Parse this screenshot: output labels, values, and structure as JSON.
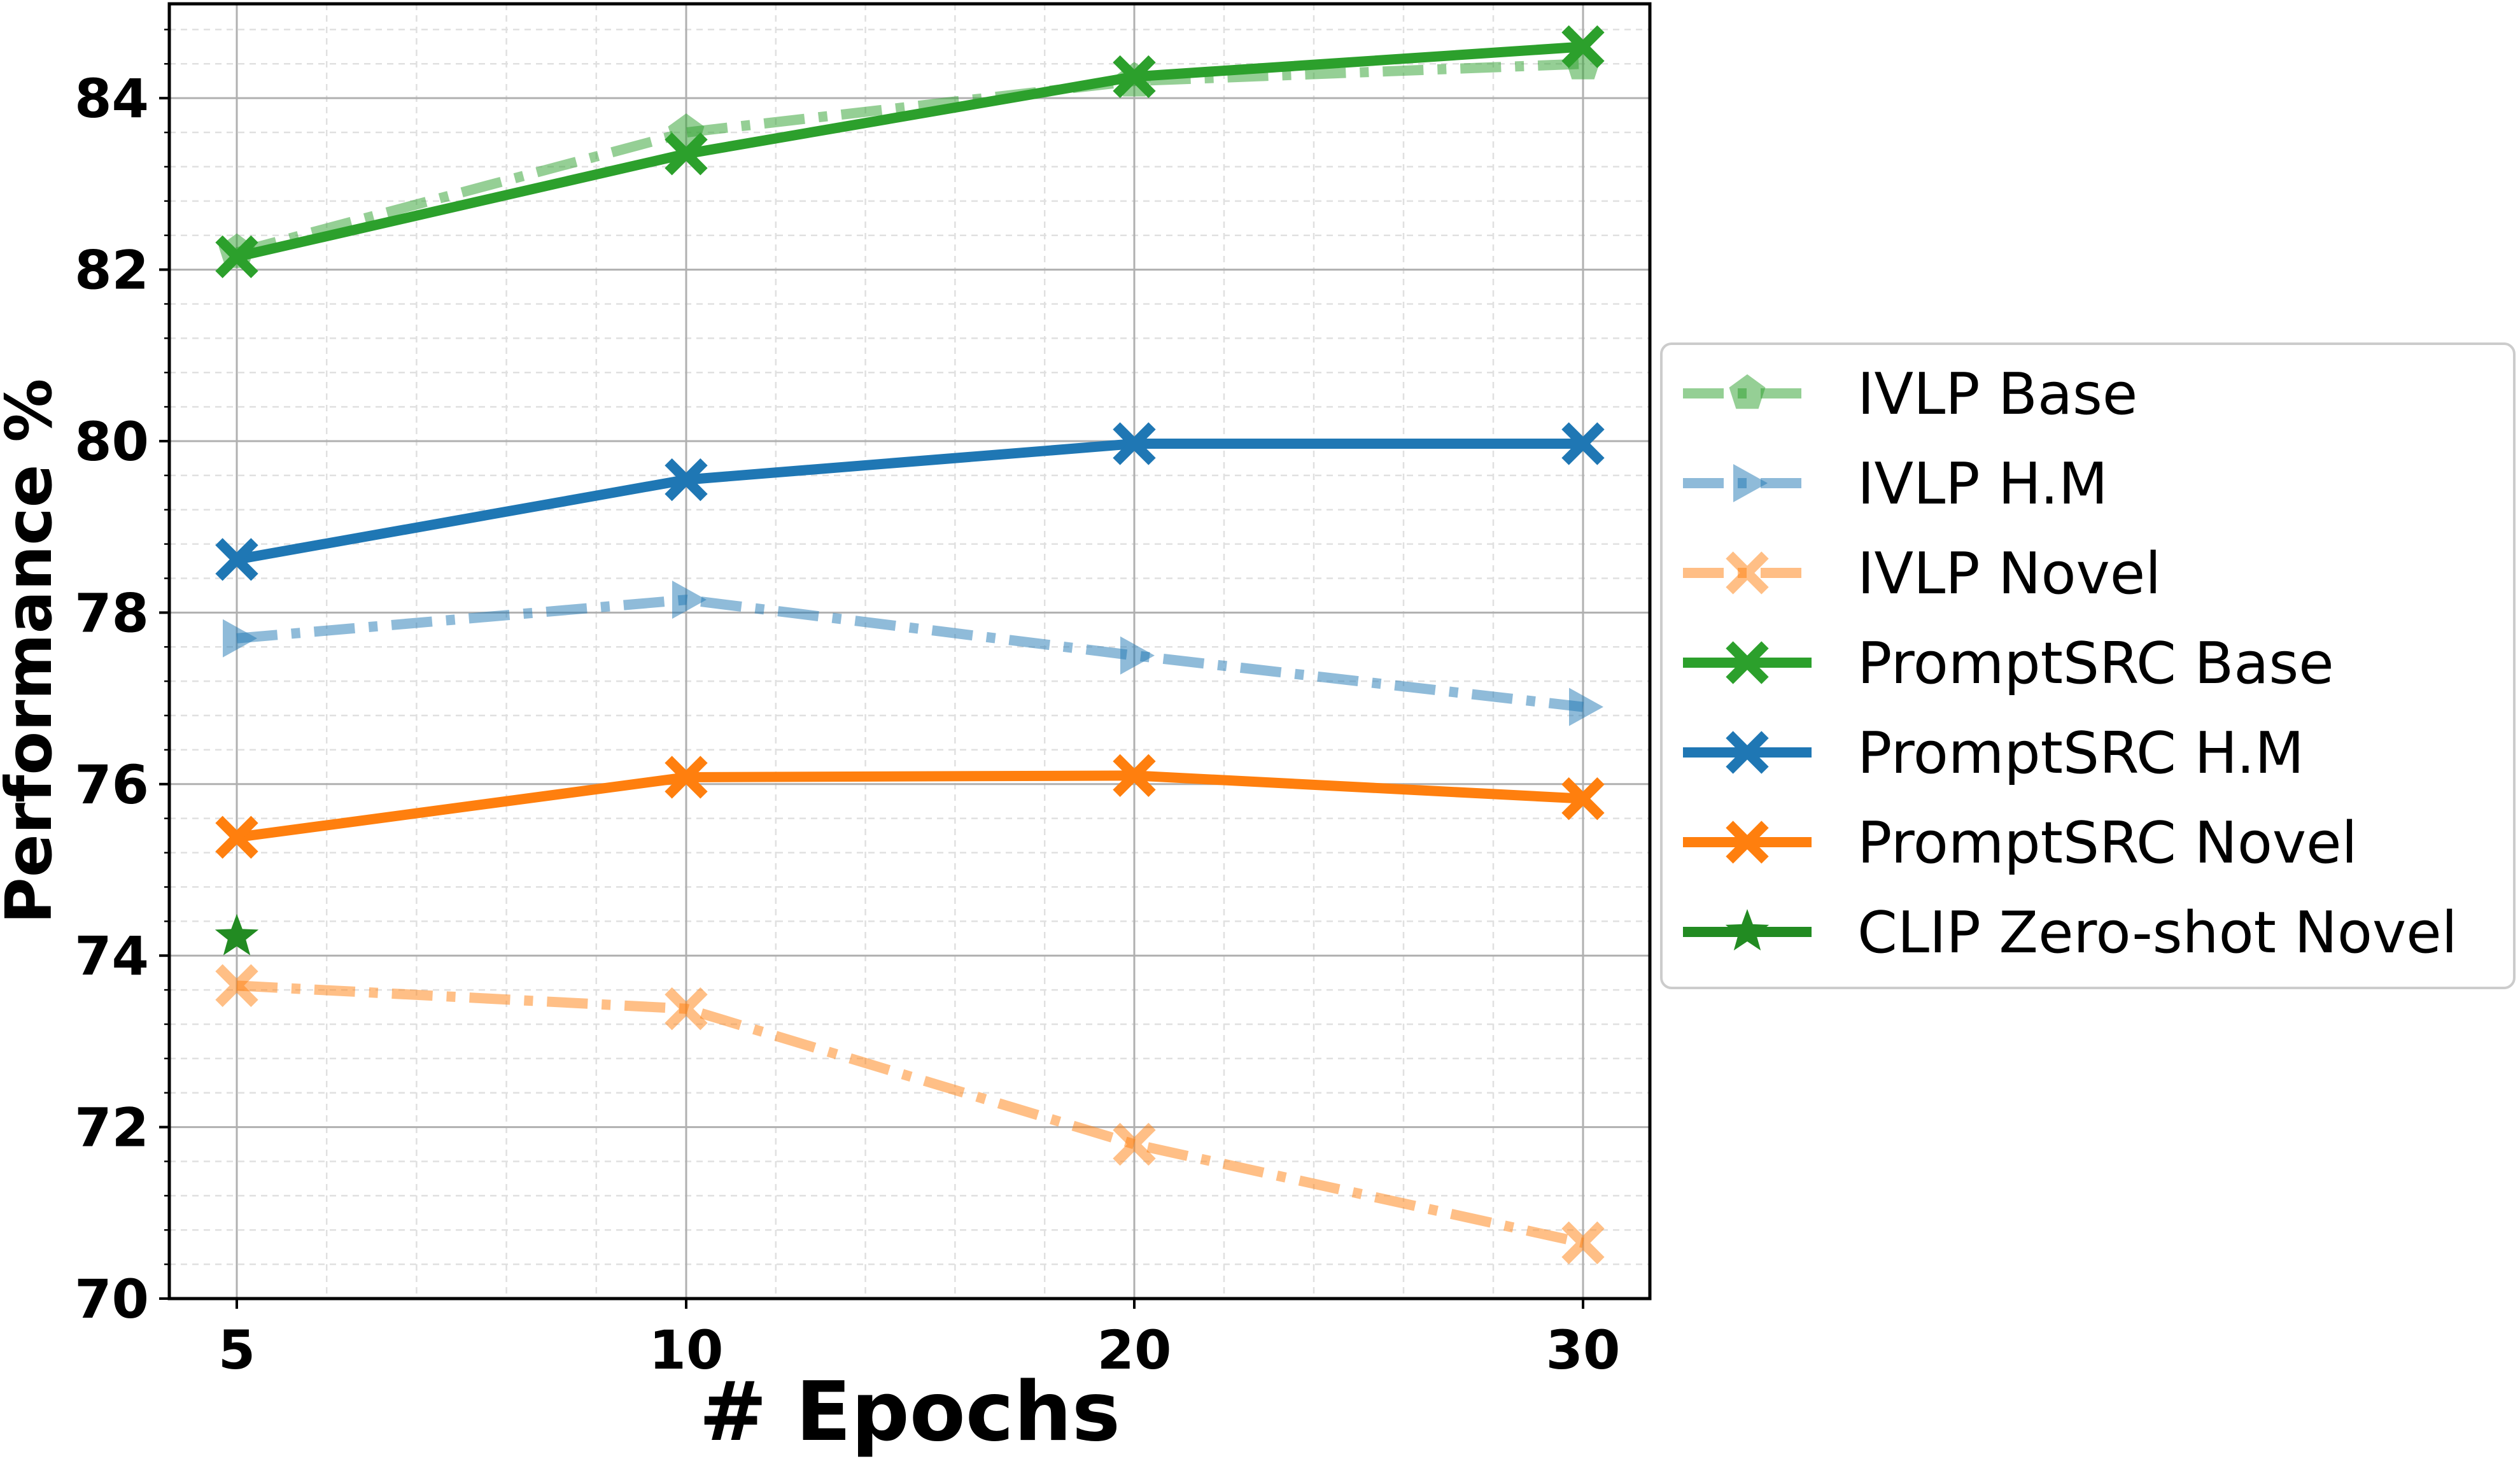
{
  "chart_data": {
    "type": "line",
    "xlabel": "# Epochs",
    "ylabel": "Performance %",
    "categories": [
      "5",
      "10",
      "20",
      "30"
    ],
    "y_ticks": [
      "70",
      "72",
      "74",
      "76",
      "78",
      "80",
      "82",
      "84"
    ],
    "ylim": [
      70,
      85.1
    ],
    "grid": true,
    "minor_grid": true,
    "legend_position": "right, outside plot",
    "series": [
      {
        "name": "IVLP Base",
        "values": [
          82.2,
          83.6,
          84.2,
          84.4
        ],
        "color": "#2ca02c",
        "style": "dashdot",
        "alpha": 0.5,
        "marker": "pentagon"
      },
      {
        "name": "IVLP H.M",
        "values": [
          77.7,
          78.15,
          77.5,
          76.9
        ],
        "color": "#1f77b4",
        "style": "dashdot",
        "alpha": 0.5,
        "marker": "triangle-right"
      },
      {
        "name": "IVLP Novel",
        "values": [
          73.65,
          73.38,
          71.8,
          70.65
        ],
        "color": "#ff7f0e",
        "style": "dashdot",
        "alpha": 0.5,
        "marker": "x"
      },
      {
        "name": "PromptSRC Base",
        "values": [
          82.15,
          83.35,
          84.25,
          84.6
        ],
        "color": "#2ca02c",
        "style": "solid",
        "alpha": 1,
        "marker": "x"
      },
      {
        "name": "PromptSRC H.M",
        "values": [
          78.62,
          79.55,
          79.97,
          79.97
        ],
        "color": "#1f77b4",
        "style": "solid",
        "alpha": 1,
        "marker": "x"
      },
      {
        "name": "PromptSRC Novel",
        "values": [
          75.38,
          76.08,
          76.1,
          75.83
        ],
        "color": "#ff7f0e",
        "style": "solid",
        "alpha": 1,
        "marker": "x"
      },
      {
        "name": "CLIP Zero-shot Novel",
        "values": [
          74.22,
          null,
          null,
          null
        ],
        "color": "#228b22",
        "style": "solid",
        "alpha": 1,
        "marker": "star"
      }
    ]
  }
}
